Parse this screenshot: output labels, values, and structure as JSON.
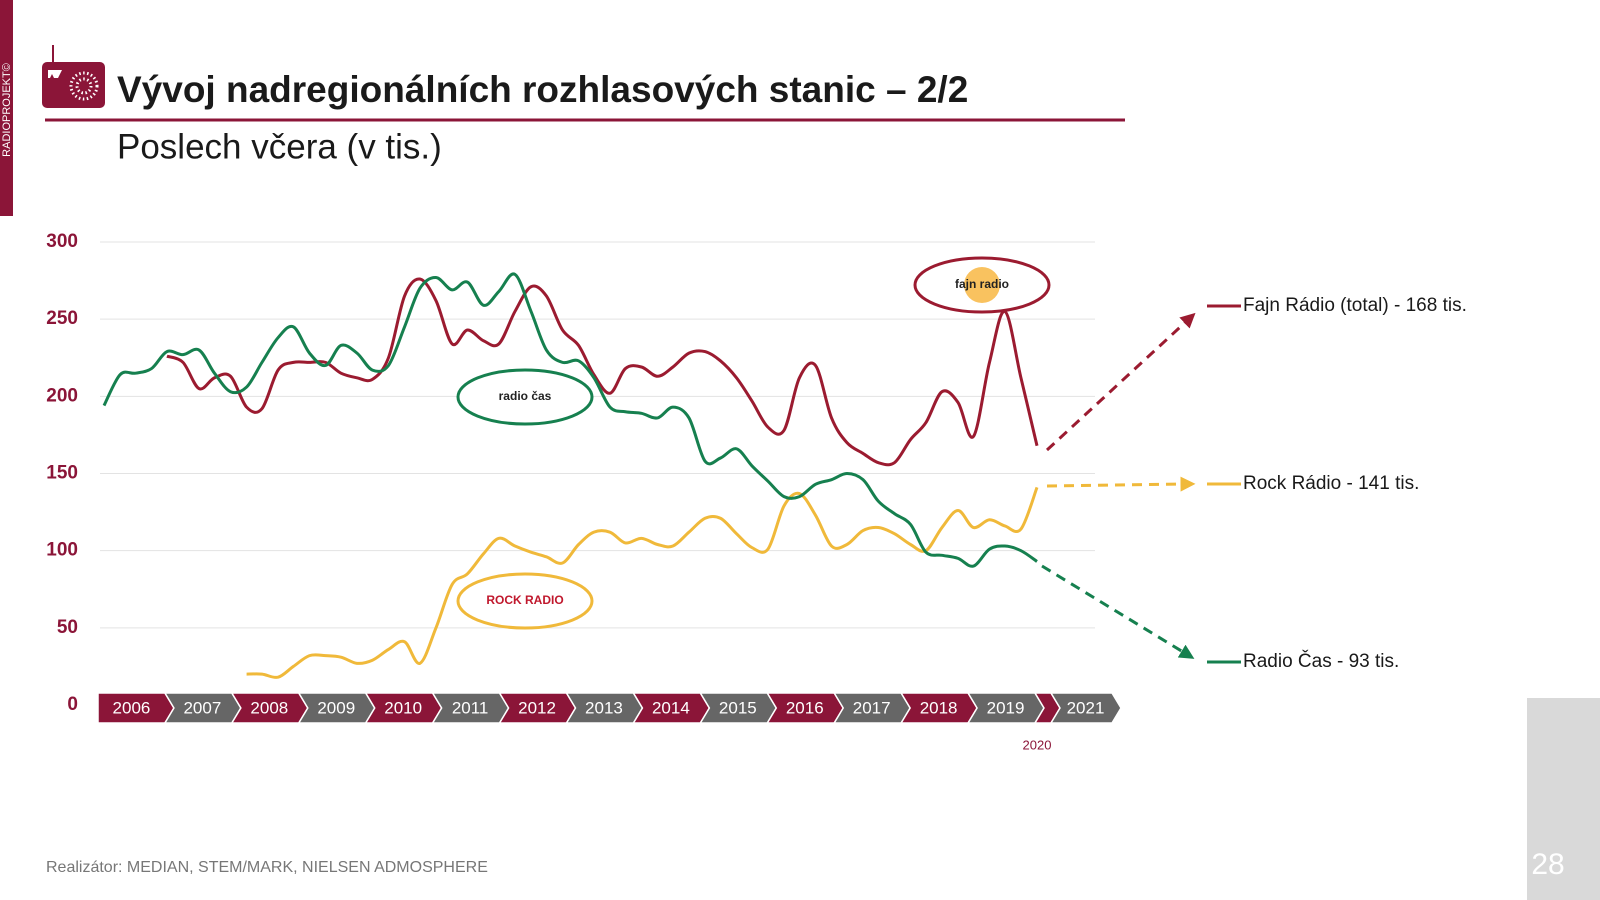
{
  "brand": "RADIOPROJEKT©",
  "page_number": "28",
  "footer": "Realizátor: MEDIAN, STEM/MARK, NIELSEN ADMOSPHERE",
  "chart_data": {
    "type": "line",
    "title": "Vývoj nadregionálních rozhlasových stanic – 2/2",
    "subtitle": "Poslech včera (v tis.)",
    "x": [
      2006.09,
      2006.33,
      2006.56,
      2006.8,
      2007.03,
      2007.27,
      2007.51,
      2007.74,
      2007.98,
      2008.22,
      2008.45,
      2008.69,
      2008.92,
      2009.16,
      2009.4,
      2009.63,
      2009.87,
      2010.1,
      2010.34,
      2010.58,
      2010.81,
      2011.05,
      2011.29,
      2011.52,
      2011.76,
      2011.99,
      2012.23,
      2012.47,
      2012.7,
      2012.94,
      2013.18,
      2013.41,
      2013.65,
      2013.88,
      2014.12,
      2014.36,
      2014.59,
      2014.83,
      2015.07,
      2015.3,
      2015.54,
      2015.77,
      2016.01,
      2016.25,
      2016.48,
      2016.72,
      2016.96,
      2017.19,
      2017.43,
      2017.66,
      2017.9,
      2018.14,
      2018.37,
      2018.61,
      2018.85,
      2019.08,
      2019.32,
      2019.55,
      2019.79,
      2020.03
    ],
    "xlim": [
      2006,
      2020
    ],
    "xticks": [
      2006,
      2007,
      2008,
      2009,
      2010,
      2011,
      2012,
      2013,
      2014,
      2015,
      2016,
      2017,
      2018,
      2019,
      2020,
      2021
    ],
    "ylim": [
      0,
      300
    ],
    "yticks": [
      0,
      50,
      100,
      150,
      200,
      250,
      300
    ],
    "grid": true,
    "series": [
      {
        "name": "Fajn Rádio (total) - 168 tis.",
        "color": "#9b1b30",
        "values": [
          null,
          null,
          null,
          null,
          226,
          222,
          205,
          212,
          213,
          193,
          192,
          217,
          222,
          222,
          222,
          215,
          212,
          211,
          225,
          265,
          276,
          262,
          234,
          243,
          236,
          234,
          255,
          271,
          265,
          243,
          233,
          214,
          202,
          218,
          219,
          213,
          219,
          228,
          229,
          223,
          212,
          197,
          180,
          178,
          212,
          220,
          186,
          170,
          163,
          157,
          157,
          172,
          183,
          203,
          196,
          174,
          222,
          255,
          212,
          168
        ]
      },
      {
        "name": "Rock Rádio - 141 tis.",
        "color": "#f0b93a",
        "values": [
          null,
          null,
          null,
          null,
          null,
          null,
          null,
          null,
          null,
          20,
          20,
          18,
          25,
          32,
          32,
          31,
          27,
          29,
          36,
          41,
          27,
          50,
          78,
          85,
          98,
          108,
          103,
          99,
          96,
          92,
          104,
          112,
          112,
          105,
          108,
          104,
          103,
          112,
          121,
          121,
          111,
          102,
          101,
          129,
          137,
          123,
          103,
          104,
          113,
          115,
          111,
          104,
          100,
          115,
          126,
          115,
          120,
          116,
          114,
          141
        ]
      },
      {
        "name": "Radio Čas - 93 tis.",
        "color": "#16804f",
        "values": [
          194,
          214,
          215,
          218,
          229,
          227,
          230,
          215,
          203,
          206,
          222,
          238,
          245,
          228,
          220,
          233,
          228,
          217,
          220,
          245,
          270,
          277,
          269,
          274,
          259,
          268,
          279,
          255,
          230,
          222,
          223,
          212,
          193,
          190,
          189,
          186,
          193,
          186,
          158,
          160,
          166,
          155,
          145,
          135,
          135,
          143,
          146,
          150,
          146,
          132,
          124,
          117,
          99,
          97,
          95,
          90,
          101,
          103,
          100,
          93
        ]
      }
    ],
    "logos": [
      "fajn radio",
      "ROCK RADIO",
      "radio čas"
    ]
  }
}
